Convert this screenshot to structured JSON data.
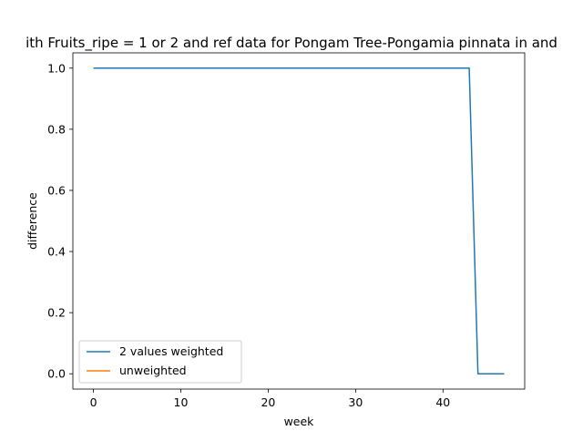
{
  "chart_data": {
    "type": "line",
    "title": "ith Fruits_ripe = 1 or 2 and ref data for Pongam Tree-Pongamia pinnata in and",
    "xlabel": "week",
    "ylabel": "difference",
    "xlim": [
      -2.35,
      49.35
    ],
    "ylim": [
      -0.05,
      1.05
    ],
    "xticks": [
      0,
      10,
      20,
      30,
      40
    ],
    "yticks": [
      0.0,
      0.2,
      0.4,
      0.6,
      0.8,
      1.0
    ],
    "xtick_labels": [
      "0",
      "10",
      "20",
      "30",
      "40"
    ],
    "ytick_labels": [
      "0.0",
      "0.2",
      "0.4",
      "0.6",
      "0.8",
      "1.0"
    ],
    "grid": false,
    "legend_position": "lower-left",
    "series": [
      {
        "name": "2 values weighted",
        "color": "#1f77b4",
        "x": [
          0,
          43,
          44,
          47
        ],
        "y": [
          1.0,
          1.0,
          0.0,
          0.0
        ]
      },
      {
        "name": "unweighted",
        "color": "#ff7f0e",
        "x": [],
        "y": []
      }
    ]
  }
}
